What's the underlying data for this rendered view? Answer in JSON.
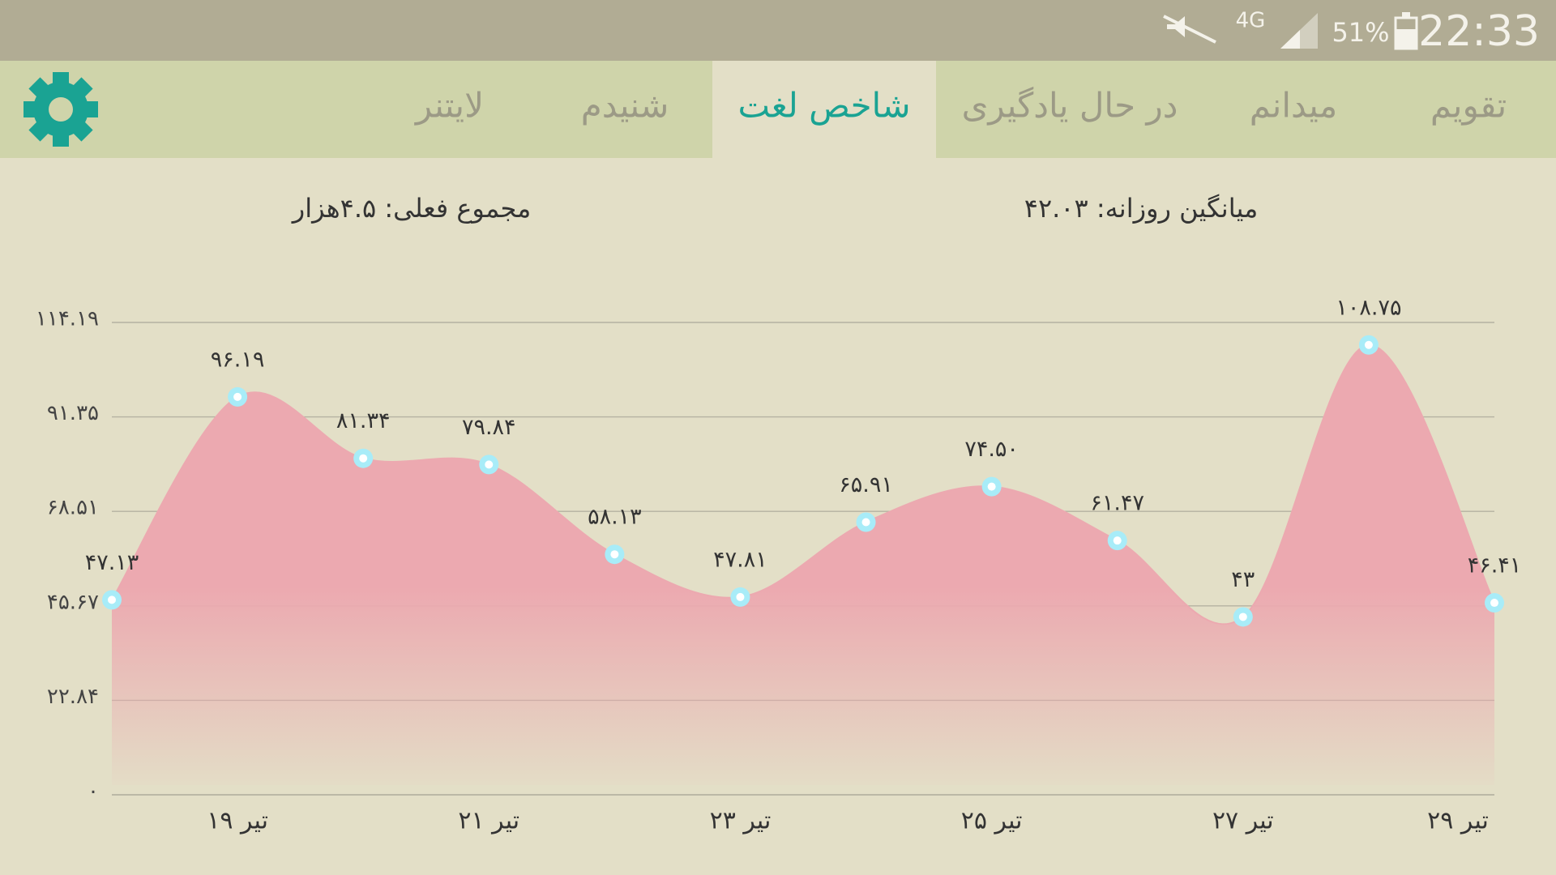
{
  "status_bar": {
    "network": "4G",
    "battery": "51%",
    "time": "22:33"
  },
  "tabs": [
    "تقویم",
    "میدانم",
    "در حال یادگیری",
    "شاخص لغت",
    "شنیدم",
    "لایتنر"
  ],
  "selected_tab": 3,
  "summary": {
    "daily_average": "میانگین روزانه: ۴۲.۰۳",
    "current_total": "مجموع فعلی: ۴.۵هزار"
  },
  "chart_data": {
    "type": "area",
    "categories": [
      null,
      "۱۹ تیر",
      null,
      "۲۱ تیر",
      null,
      "۲۳ تیر",
      null,
      "۲۵ تیر",
      null,
      "۲۷ تیر",
      null,
      "۲۹ تیر"
    ],
    "values": [
      47.13,
      96.19,
      81.34,
      79.84,
      58.13,
      47.81,
      65.91,
      74.5,
      61.47,
      43,
      108.75,
      46.41
    ],
    "value_labels": [
      "۴۷.۱۳",
      "۹۶.۱۹",
      "۸۱.۳۴",
      "۷۹.۸۴",
      "۵۸.۱۳",
      "۴۷.۸۱",
      "۶۵.۹۱",
      "۷۴.۵۰",
      "۶۱.۴۷",
      "۴۳",
      "۱۰۸.۷۵",
      "۴۶.۴۱"
    ],
    "color": "#eca9b0",
    "marker_color": "#a8ecf8",
    "ylim": [
      0,
      114.19
    ],
    "yticks": [
      {
        "value": 0,
        "label": "۰"
      },
      {
        "value": 22.84,
        "label": "۲۲.۸۴"
      },
      {
        "value": 45.67,
        "label": "۴۵.۶۷"
      },
      {
        "value": 68.51,
        "label": "۶۸.۵۱"
      },
      {
        "value": 91.35,
        "label": "۹۱.۳۵"
      },
      {
        "value": 114.19,
        "label": "۱۱۴.۱۹"
      }
    ],
    "grid": true
  }
}
